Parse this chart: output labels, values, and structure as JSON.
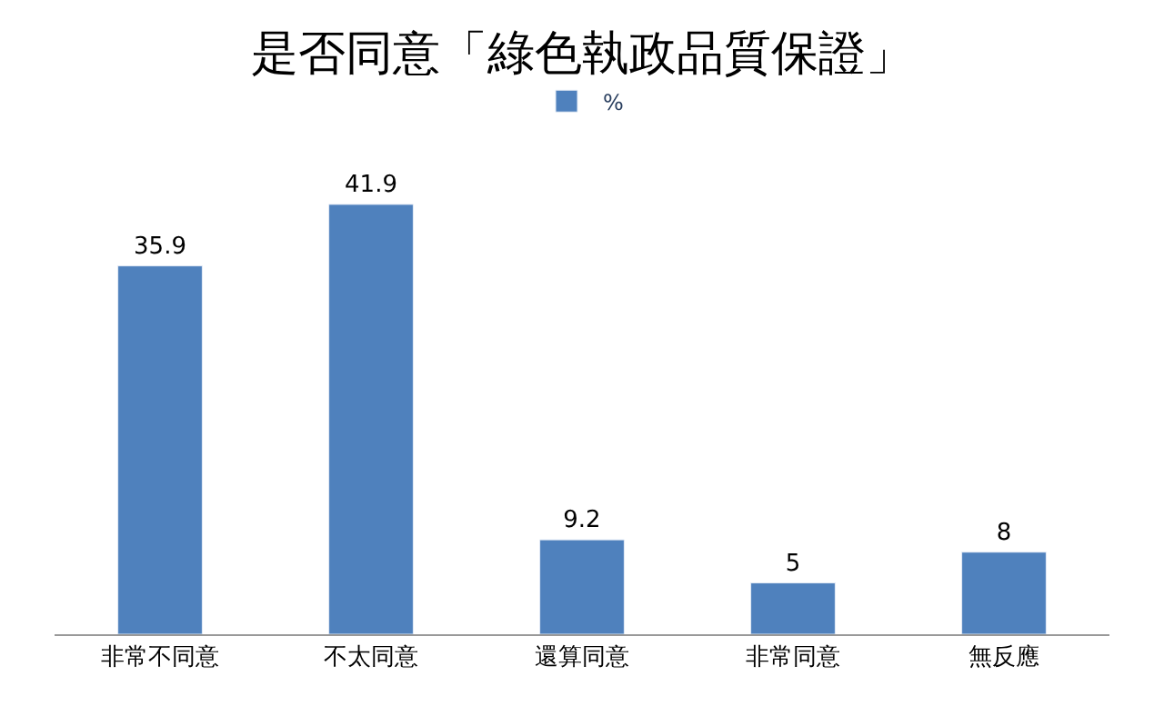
{
  "chart_data": {
    "type": "bar",
    "title": "是否同意「綠色執政品質保證」",
    "categories": [
      "非常不同意",
      "不太同意",
      "還算同意",
      "非常同意",
      "無反應"
    ],
    "series": [
      {
        "name": "%",
        "color": "#4f81bd",
        "values": [
          35.9,
          41.9,
          9.2,
          5,
          8
        ]
      }
    ],
    "data_labels": true,
    "legend": "top",
    "tick_labels": "x"
  }
}
